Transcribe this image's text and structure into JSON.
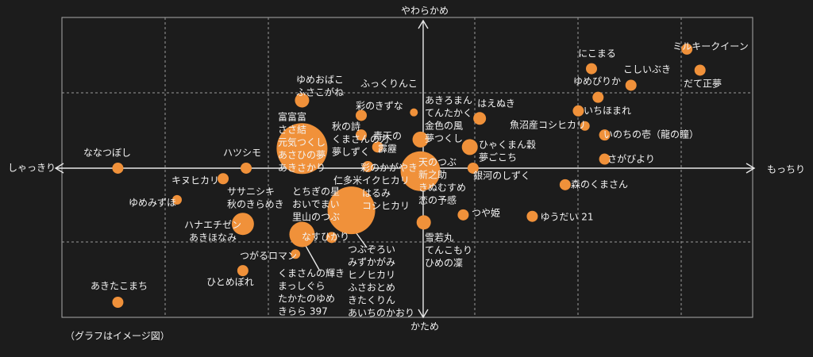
{
  "chart_data": {
    "type": "bubble",
    "x_label_left": "しゃっきり",
    "x_label_right": "もっちり",
    "y_label_top": "やわらかめ",
    "y_label_bottom": "かため",
    "note": "（グラフはイメージ図）",
    "xlim": [
      -110,
      100
    ],
    "ylim": [
      -99,
      100
    ],
    "color": "#f0913a",
    "points": [
      {
        "labels": [
          "ななつぼし"
        ],
        "x": -93,
        "y": 0,
        "size": 7
      },
      {
        "labels": [
          "あきたこまち"
        ],
        "x": -93,
        "y": -89,
        "size": 7
      },
      {
        "labels": [
          "ゆめみずほ"
        ],
        "x": -75,
        "y": -21,
        "size": 6
      },
      {
        "labels": [
          "キヌヒカリ"
        ],
        "x": -61,
        "y": -7,
        "size": 7
      },
      {
        "labels": [
          "ハツシモ"
        ],
        "x": -54,
        "y": 0,
        "size": 7
      },
      {
        "labels": [
          "ハナエチゼン",
          "あきほなみ"
        ],
        "x": -55,
        "y": -37,
        "size": 14
      },
      {
        "labels": [
          "つがるロマン"
        ],
        "x": -39,
        "y": -57,
        "size": 6
      },
      {
        "labels": [
          "ひとめぼれ"
        ],
        "x": -55,
        "y": -68,
        "size": 7
      },
      {
        "labels": [
          "ゆめおばこ",
          "ふさこがね"
        ],
        "x": -37,
        "y": 45,
        "size": 9
      },
      {
        "labels": [
          "富富富",
          "ささ結",
          "元気つくし",
          "あさひの夢",
          "あきさかり"
        ],
        "x": -37,
        "y": 13,
        "size": 32
      },
      {
        "labels": [
          "秋の詩",
          "くまさんの力",
          "夢しずく"
        ],
        "x": -19,
        "y": 22,
        "size": 7
      },
      {
        "labels": [
          "彩のきずな"
        ],
        "x": -19,
        "y": 35,
        "size": 7
      },
      {
        "labels": [
          "ふっくりんこ"
        ],
        "x": -3,
        "y": 37,
        "size": 5
      },
      {
        "labels": [
          "青天の",
          "霹靂"
        ],
        "x": -14,
        "y": 14,
        "size": 7
      },
      {
        "labels": [
          "仁多米"
        ],
        "x": -17,
        "y": 1,
        "size": 7
      },
      {
        "labels": [
          "イクヒカリ",
          "はるみ",
          "コシヒカリ"
        ],
        "x": -22,
        "y": -28,
        "size": 30
      },
      {
        "labels": [
          "なすひかり"
        ],
        "x": -37,
        "y": -44,
        "size": 16
      },
      {
        "labels": [
          "つぶぞろい",
          "みずかがみ",
          "ヒノヒカリ",
          "ふさおとめ",
          "きたくりん",
          "あいちのかおり"
        ],
        "x": -28,
        "y": -46,
        "size": 7
      },
      {
        "labels": [
          "天のつぶ",
          "新之助",
          "きぬむすめ",
          "恋の予感"
        ],
        "x": -1,
        "y": -2,
        "size": 25
      },
      {
        "labels": [
          "あきろまん",
          "てんたかく",
          "金色の風",
          "夢つくし"
        ],
        "x": -1,
        "y": 19,
        "size": 10
      },
      {
        "labels": [
          "はえぬき"
        ],
        "x": 17,
        "y": 33,
        "size": 8
      },
      {
        "labels": [
          "ひゃくまん穀",
          "夢ごこち"
        ],
        "x": 14,
        "y": 14,
        "size": 10
      },
      {
        "labels": [
          "銀河のしずく"
        ],
        "x": 15,
        "y": 0,
        "size": 7
      },
      {
        "labels": [
          "つや姫"
        ],
        "x": 12,
        "y": -31,
        "size": 7
      },
      {
        "labels": [
          "雪若丸",
          "てんこもり",
          "ひめの凜"
        ],
        "x": 0,
        "y": -36,
        "size": 9
      },
      {
        "labels": [
          "ゆうだい 21"
        ],
        "x": 33,
        "y": -32,
        "size": 7
      },
      {
        "labels": [
          "森のくまさん"
        ],
        "x": 43,
        "y": -11,
        "size": 7
      },
      {
        "labels": [
          "さがびより"
        ],
        "x": 55,
        "y": 6,
        "size": 7
      },
      {
        "labels": [
          "いのちの壱（龍の瞳）"
        ],
        "x": 55,
        "y": 22,
        "size": 7
      },
      {
        "labels": [
          "魚沼産コシヒカリ"
        ],
        "x": 49,
        "y": 28,
        "size": 6
      },
      {
        "labels": [
          "いちほまれ"
        ],
        "x": 47,
        "y": 38,
        "size": 7
      },
      {
        "labels": [
          "ゆめぴりか"
        ],
        "x": 53,
        "y": 47,
        "size": 7
      },
      {
        "labels": [
          "にこまる"
        ],
        "x": 51,
        "y": 66,
        "size": 7
      },
      {
        "labels": [
          "こしいぶき"
        ],
        "x": 63,
        "y": 55,
        "size": 7
      },
      {
        "labels": [
          "ミルキークイーン"
        ],
        "x": 80,
        "y": 79,
        "size": 7
      },
      {
        "labels": [
          "だて正夢"
        ],
        "x": 84,
        "y": 65,
        "size": 7
      }
    ],
    "label_groups": [
      [
        "ササニシキ",
        "秋のきらめき"
      ],
      [
        "とちぎの星",
        "おいでまい",
        "里山のつぶ"
      ],
      [
        "くまさんの輝き",
        "まっしぐら",
        "たかたのゆめ",
        "きらら 397"
      ],
      [
        "彩のかがやき"
      ]
    ]
  }
}
